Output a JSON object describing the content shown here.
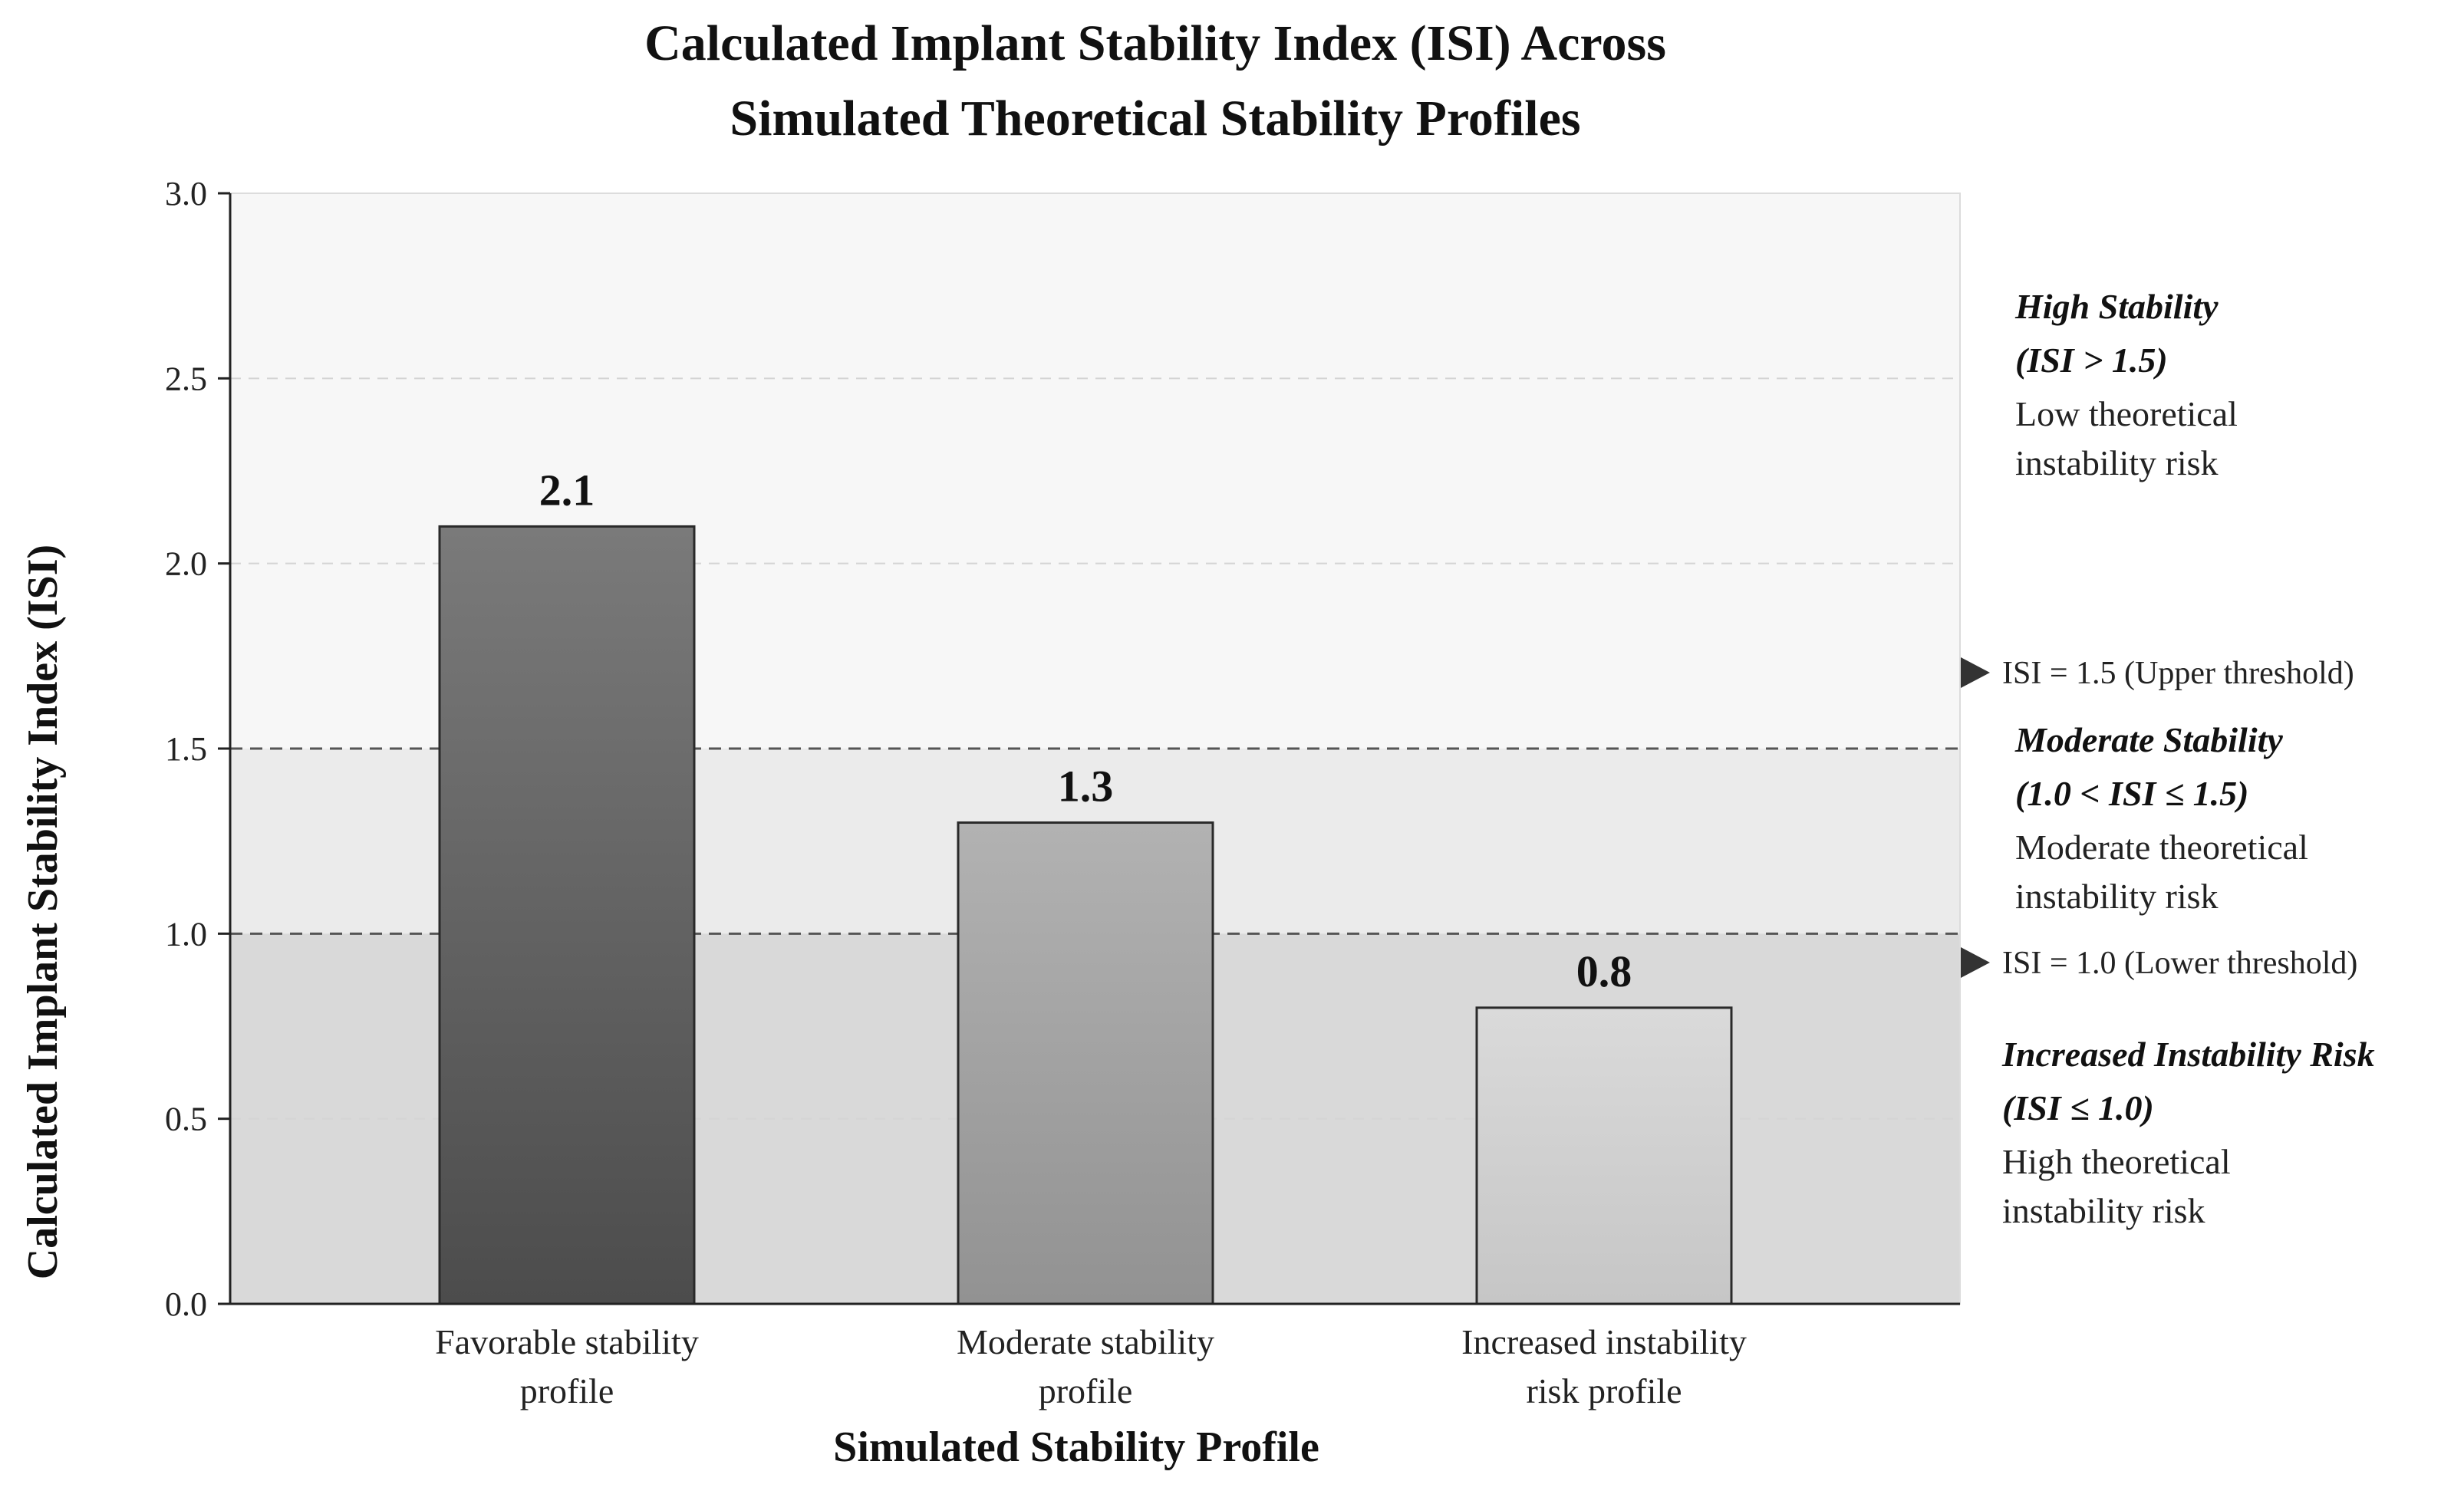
{
  "chart_data": {
    "type": "bar",
    "title_lines": [
      "Calculated Implant Stability Index (ISI) Across",
      "Simulated Theoretical Stability Profiles"
    ],
    "xlabel": "Simulated Stability Profile",
    "ylabel": "Calculated Implant Stability Index (ISI)",
    "categories": [
      [
        "Favorable stability",
        "profile"
      ],
      [
        "Moderate stability",
        "profile"
      ],
      [
        "Increased instability",
        "risk profile"
      ]
    ],
    "values": [
      2.1,
      1.3,
      0.8
    ],
    "data_labels": [
      "2.1",
      "1.3",
      "0.8"
    ],
    "ylim": [
      0,
      3.0
    ],
    "yticks": [
      0.0,
      0.5,
      1.0,
      1.5,
      2.0,
      2.5,
      3.0
    ],
    "ytick_labels": [
      "0.0",
      "0.5",
      "1.0",
      "1.5",
      "2.0",
      "2.5",
      "3.0"
    ],
    "grid": true,
    "bar_colors": [
      "#5e5e5e",
      "#a3a3a3",
      "#d2d2d2"
    ],
    "zones": [
      {
        "from": 1.5,
        "to": 3.0,
        "color": "#f7f7f7",
        "heading": [
          "High Stability",
          "(ISI > 1.5)"
        ],
        "description": [
          "Low theoretical",
          "instability risk"
        ]
      },
      {
        "from": 1.0,
        "to": 1.5,
        "color": "#ebebeb",
        "heading": [
          "Moderate Stability",
          "(1.0 < ISI ≤ 1.5)"
        ],
        "description": [
          "Moderate theoretical",
          "instability risk"
        ]
      },
      {
        "from": 0.0,
        "to": 1.0,
        "color": "#d9d9d9",
        "heading": [
          "Increased Instability Risk",
          "(ISI ≤ 1.0)"
        ],
        "description": [
          "High theoretical",
          "instability risk"
        ]
      }
    ],
    "thresholds": [
      {
        "value": 1.5,
        "label": "ISI = 1.5 (Upper threshold)"
      },
      {
        "value": 1.0,
        "label": "ISI = 1.0 (Lower threshold)"
      }
    ]
  }
}
